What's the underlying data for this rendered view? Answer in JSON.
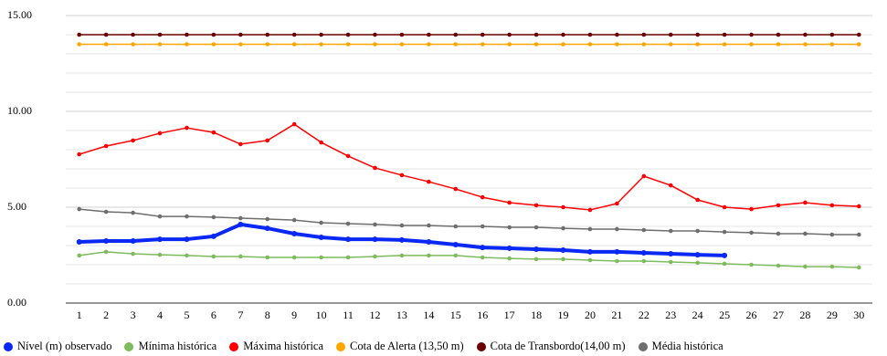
{
  "chart_data": {
    "type": "line",
    "categories": [
      "1",
      "2",
      "3",
      "4",
      "5",
      "6",
      "7",
      "8",
      "9",
      "10",
      "11",
      "12",
      "13",
      "14",
      "15",
      "16",
      "17",
      "18",
      "19",
      "20",
      "21",
      "22",
      "23",
      "24",
      "25",
      "26",
      "27",
      "28",
      "29",
      "30"
    ],
    "series": [
      {
        "name": "Nível (m) observado",
        "color": "#0a28f5",
        "width": 4,
        "values": [
          3.19,
          3.24,
          3.24,
          3.33,
          3.33,
          3.48,
          4.1,
          3.9,
          3.62,
          3.43,
          3.33,
          3.33,
          3.29,
          3.19,
          3.05,
          2.9,
          2.86,
          2.81,
          2.76,
          2.67,
          2.67,
          2.62,
          2.57,
          2.52,
          2.48,
          null,
          null,
          null,
          null,
          null
        ]
      },
      {
        "name": "Mínima histórica",
        "color": "#7dbb5c",
        "width": 1.5,
        "values": [
          2.48,
          2.67,
          2.57,
          2.52,
          2.48,
          2.43,
          2.43,
          2.38,
          2.38,
          2.38,
          2.38,
          2.43,
          2.48,
          2.48,
          2.48,
          2.38,
          2.33,
          2.29,
          2.29,
          2.24,
          2.19,
          2.19,
          2.14,
          2.1,
          2.05,
          2.0,
          1.95,
          1.9,
          1.9,
          1.86
        ]
      },
      {
        "name": "Máxima histórica",
        "color": "#ff0000",
        "width": 1.5,
        "values": [
          7.76,
          8.19,
          8.48,
          8.86,
          9.14,
          8.9,
          8.29,
          8.48,
          9.33,
          8.38,
          7.67,
          7.05,
          6.67,
          6.33,
          5.95,
          5.52,
          5.24,
          5.1,
          5.0,
          4.86,
          5.19,
          6.62,
          6.14,
          5.38,
          5.0,
          4.9,
          5.1,
          5.24,
          5.1,
          5.05
        ]
      },
      {
        "name": "Cota de Alerta (13,50 m)",
        "color": "#ffa500",
        "width": 1.5,
        "values": [
          13.5,
          13.5,
          13.5,
          13.5,
          13.5,
          13.5,
          13.5,
          13.5,
          13.5,
          13.5,
          13.5,
          13.5,
          13.5,
          13.5,
          13.5,
          13.5,
          13.5,
          13.5,
          13.5,
          13.5,
          13.5,
          13.5,
          13.5,
          13.5,
          13.5,
          13.5,
          13.5,
          13.5,
          13.5,
          13.5
        ]
      },
      {
        "name": "Cota de Transbordo(14,00 m)",
        "color": "#6b0000",
        "width": 1.5,
        "values": [
          14,
          14,
          14,
          14,
          14,
          14,
          14,
          14,
          14,
          14,
          14,
          14,
          14,
          14,
          14,
          14,
          14,
          14,
          14,
          14,
          14,
          14,
          14,
          14,
          14,
          14,
          14,
          14,
          14,
          14
        ]
      },
      {
        "name": "Média histórica",
        "color": "#6e6e6e",
        "width": 1.5,
        "values": [
          4.9,
          4.76,
          4.71,
          4.52,
          4.52,
          4.48,
          4.43,
          4.38,
          4.33,
          4.19,
          4.14,
          4.1,
          4.05,
          4.05,
          4.0,
          4.0,
          3.95,
          3.95,
          3.9,
          3.86,
          3.86,
          3.81,
          3.76,
          3.76,
          3.71,
          3.67,
          3.62,
          3.62,
          3.57,
          3.57
        ]
      }
    ],
    "ylim": [
      0,
      15
    ],
    "yticks": [
      {
        "value": 0,
        "label": "0.00"
      },
      {
        "value": 5,
        "label": "5.00"
      },
      {
        "value": 10,
        "label": "10.00"
      },
      {
        "value": 15,
        "label": "15.00"
      }
    ],
    "minor_yticks": [
      1,
      2,
      3,
      4,
      6,
      7,
      8,
      9,
      11,
      12,
      13,
      14
    ],
    "grid": true,
    "legend": "bottom"
  }
}
